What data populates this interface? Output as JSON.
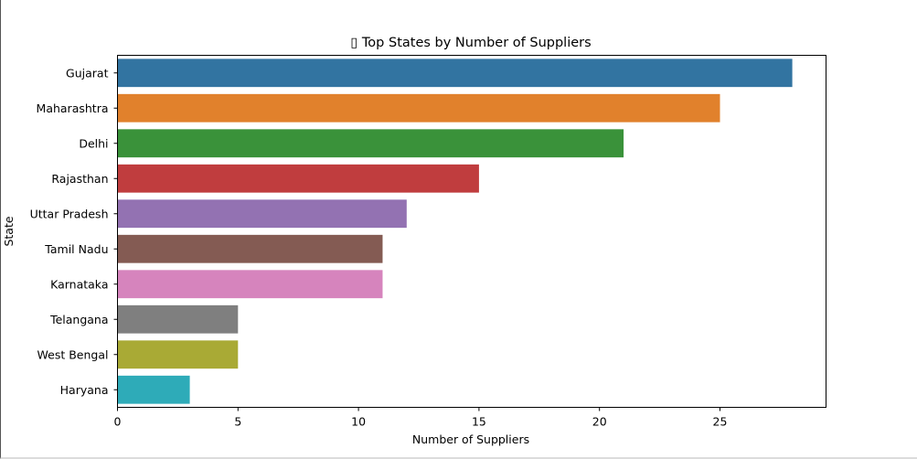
{
  "chart_data": {
    "type": "bar",
    "orientation": "horizontal",
    "title": "▯ Top States by Number of Suppliers",
    "xlabel": "Number of Suppliers",
    "ylabel": "State",
    "categories": [
      "Gujarat",
      "Maharashtra",
      "Delhi",
      "Rajasthan",
      "Uttar Pradesh",
      "Tamil Nadu",
      "Karnataka",
      "Telangana",
      "West Bengal",
      "Haryana"
    ],
    "values": [
      28,
      25,
      21,
      15,
      12,
      11,
      11,
      5,
      5,
      3
    ],
    "colors": [
      "#3274a1",
      "#e1812c",
      "#3a923a",
      "#c03d3e",
      "#9372b2",
      "#845b53",
      "#d684bd",
      "#7f7f7f",
      "#a9aa35",
      "#2eabb8"
    ],
    "xlim": [
      0,
      29.4
    ],
    "xticks": [
      0,
      5,
      10,
      15,
      20,
      25
    ],
    "xtick_labels": [
      "0",
      "5",
      "10",
      "15",
      "20",
      "25"
    ],
    "grid": false,
    "legend": "none"
  }
}
